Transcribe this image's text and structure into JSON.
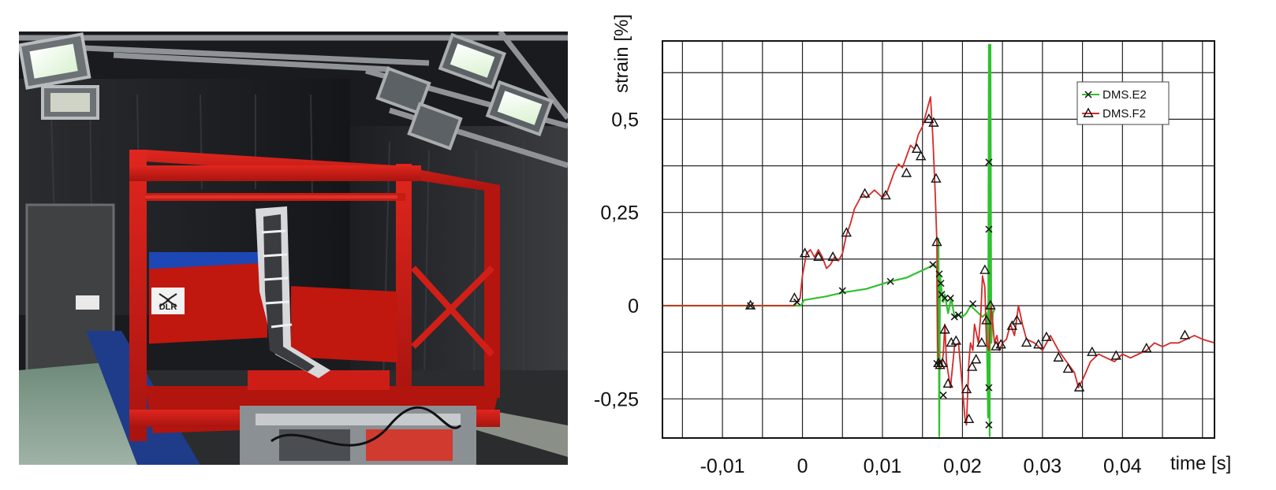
{
  "photo": {
    "logo_text": "DLR"
  },
  "chart_data": {
    "type": "line",
    "title": "",
    "xlabel": "time [s]",
    "ylabel": "strain [%]",
    "xlim": [
      -0.0175,
      0.0515
    ],
    "ylim": [
      -0.355,
      0.71
    ],
    "grid": true,
    "legend_position": "top-right",
    "x_tick_labels": [
      {
        "value": -0.01,
        "label": "-0,01"
      },
      {
        "value": 0,
        "label": "0"
      },
      {
        "value": 0.01,
        "label": "0,01"
      },
      {
        "value": 0.02,
        "label": "0,02"
      },
      {
        "value": 0.03,
        "label": "0,03"
      },
      {
        "value": 0.04,
        "label": "0,04"
      }
    ],
    "y_tick_labels": [
      {
        "value": 0.5,
        "label": "0,5"
      },
      {
        "value": 0.25,
        "label": "0,25"
      },
      {
        "value": 0,
        "label": "0"
      },
      {
        "value": -0.25,
        "label": "-0,25"
      }
    ],
    "series": [
      {
        "name": "DMS.E2",
        "color": "#2fc22f",
        "marker": "x",
        "x": [
          -0.0175,
          -0.0065,
          -0.0002,
          0.0002,
          0.003,
          0.005,
          0.008,
          0.011,
          0.013,
          0.0155,
          0.0165,
          0.0168,
          0.0169,
          0.017,
          0.0171,
          0.0172,
          0.0174,
          0.0176,
          0.0178,
          0.0182,
          0.0186,
          0.019,
          0.0195,
          0.02,
          0.0205,
          0.021,
          0.0215,
          0.022,
          0.0225,
          0.023,
          0.0232,
          0.0233,
          0.0234,
          0.0235,
          0.0236,
          0.0238,
          0.024
        ],
        "y": [
          0,
          0,
          0.0,
          0.015,
          0.025,
          0.035,
          0.045,
          0.065,
          0.075,
          0.1,
          0.11,
          0.1,
          -0.15,
          0.18,
          -0.35,
          0.08,
          0.04,
          0.01,
          0.03,
          -0.02,
          0.02,
          -0.03,
          -0.025,
          -0.03,
          -0.02,
          0.0,
          -0.01,
          -0.02,
          -0.03,
          -0.02,
          -0.3,
          0.7,
          -0.35,
          0.7,
          -0.1,
          -0.02,
          -0.01
        ],
        "markers_x": [
          -0.0065,
          -0.0007,
          0.005,
          0.011,
          0.0163,
          0.0168,
          0.0171,
          0.0173,
          0.0174,
          0.0176,
          0.0178,
          0.0185,
          0.019,
          0.0195,
          0.0213,
          0.0233,
          0.0233,
          0.0233,
          0.0233
        ],
        "markers_y": [
          0.0,
          0.01,
          0.04,
          0.065,
          0.11,
          -0.155,
          0.085,
          0.06,
          0.03,
          -0.24,
          0.02,
          0.02,
          -0.03,
          -0.025,
          0.005,
          0.385,
          0.205,
          -0.22,
          -0.32
        ]
      },
      {
        "name": "DMS.F2",
        "color": "#d42a2a",
        "marker": "triangle",
        "x": [
          -0.0175,
          -0.0065,
          -0.001,
          -0.0003,
          0.0,
          0.0005,
          0.001,
          0.0015,
          0.002,
          0.0025,
          0.003,
          0.0035,
          0.004,
          0.0045,
          0.005,
          0.0055,
          0.006,
          0.0065,
          0.007,
          0.0075,
          0.008,
          0.0085,
          0.009,
          0.0095,
          0.01,
          0.0105,
          0.011,
          0.0115,
          0.012,
          0.0125,
          0.013,
          0.0135,
          0.014,
          0.0145,
          0.015,
          0.0155,
          0.016,
          0.0163,
          0.0166,
          0.0168,
          0.0169,
          0.017,
          0.0172,
          0.0174,
          0.0176,
          0.0178,
          0.018,
          0.0185,
          0.019,
          0.0195,
          0.02,
          0.0203,
          0.0205,
          0.0208,
          0.021,
          0.0213,
          0.0215,
          0.0218,
          0.022,
          0.0223,
          0.0225,
          0.0228,
          0.023,
          0.0233,
          0.0236,
          0.024,
          0.0243,
          0.0246,
          0.025,
          0.0255,
          0.026,
          0.0265,
          0.027,
          0.0275,
          0.028,
          0.029,
          0.0295,
          0.03,
          0.031,
          0.032,
          0.033,
          0.034,
          0.0345,
          0.035,
          0.036,
          0.037,
          0.038,
          0.039,
          0.04,
          0.041,
          0.042,
          0.043,
          0.044,
          0.045,
          0.046,
          0.047,
          0.048,
          0.049,
          0.05,
          0.0515
        ],
        "y": [
          0,
          0,
          0.0,
          0.02,
          0.08,
          0.14,
          0.15,
          0.13,
          0.15,
          0.13,
          0.1,
          0.11,
          0.13,
          0.12,
          0.14,
          0.19,
          0.22,
          0.26,
          0.28,
          0.3,
          0.29,
          0.3,
          0.31,
          0.3,
          0.29,
          0.3,
          0.33,
          0.36,
          0.38,
          0.37,
          0.4,
          0.43,
          0.42,
          0.46,
          0.48,
          0.52,
          0.56,
          0.45,
          0.3,
          0.17,
          -0.1,
          -0.15,
          -0.17,
          -0.16,
          -0.13,
          -0.05,
          -0.15,
          -0.22,
          -0.11,
          -0.1,
          -0.22,
          -0.3,
          -0.32,
          -0.15,
          -0.1,
          -0.12,
          -0.05,
          -0.08,
          -0.1,
          -0.02,
          0.08,
          0.05,
          -0.1,
          -0.12,
          0.0,
          -0.1,
          -0.08,
          -0.12,
          -0.1,
          -0.09,
          -0.05,
          -0.08,
          0.0,
          -0.05,
          -0.09,
          -0.1,
          -0.11,
          -0.12,
          -0.08,
          -0.12,
          -0.15,
          -0.18,
          -0.22,
          -0.2,
          -0.15,
          -0.13,
          -0.14,
          -0.15,
          -0.13,
          -0.14,
          -0.13,
          -0.12,
          -0.1,
          -0.11,
          -0.1,
          -0.1,
          -0.09,
          -0.08,
          -0.09,
          -0.1
        ],
        "markers_x": [
          -0.0065,
          -0.001,
          0.0003,
          0.002,
          0.0038,
          0.0055,
          0.0078,
          0.0104,
          0.013,
          0.0143,
          0.0148,
          0.0158,
          0.0164,
          0.0167,
          0.0168,
          0.017,
          0.0172,
          0.0175,
          0.0178,
          0.0182,
          0.0186,
          0.0192,
          0.0205,
          0.0208,
          0.0212,
          0.0217,
          0.0224,
          0.0228,
          0.023,
          0.0235,
          0.0242,
          0.0248,
          0.0262,
          0.0268,
          0.028,
          0.0295,
          0.0305,
          0.032,
          0.0332,
          0.0346,
          0.0362,
          0.0392,
          0.043,
          0.0478
        ],
        "markers_y": [
          0.0,
          0.02,
          0.14,
          0.13,
          0.13,
          0.195,
          0.3,
          0.295,
          0.355,
          0.42,
          0.4,
          0.5,
          0.49,
          0.34,
          0.17,
          -0.155,
          -0.16,
          -0.155,
          -0.065,
          -0.21,
          -0.1,
          -0.095,
          -0.225,
          -0.305,
          -0.165,
          -0.145,
          -0.1,
          0.095,
          -0.04,
          0.0,
          -0.11,
          -0.105,
          -0.055,
          -0.04,
          -0.1,
          -0.105,
          -0.085,
          -0.14,
          -0.17,
          -0.22,
          -0.125,
          -0.135,
          -0.115,
          -0.08
        ]
      }
    ]
  }
}
